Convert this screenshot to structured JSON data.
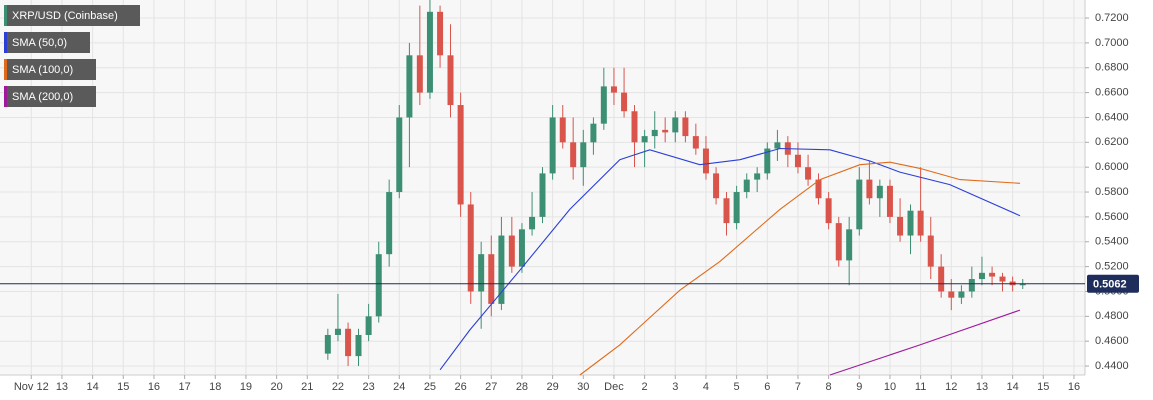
{
  "chart_data": {
    "type": "candlestick",
    "symbol": "XRP/USD (Coinbase)",
    "up_color": "#3d8f74",
    "down_color": "#d9554c",
    "grid": true,
    "xlim": [
      10.98,
      46.36
    ],
    "ylim": [
      0.4328,
      0.7345
    ],
    "xticks": [
      {
        "value": 12,
        "label": "Nov 12"
      },
      13,
      14,
      15,
      16,
      17,
      18,
      19,
      20,
      21,
      22,
      23,
      24,
      25,
      26,
      27,
      28,
      29,
      30,
      {
        "value": 31,
        "label": "Dec"
      },
      {
        "value": 32,
        "label": "2"
      },
      {
        "value": 33,
        "label": "3"
      },
      {
        "value": 34,
        "label": "4"
      },
      {
        "value": 35,
        "label": "5"
      },
      {
        "value": 36,
        "label": "6"
      },
      {
        "value": 37,
        "label": "7"
      },
      {
        "value": 38,
        "label": "8"
      },
      {
        "value": 39,
        "label": "9"
      },
      {
        "value": 40,
        "label": "10"
      },
      {
        "value": 41,
        "label": "11"
      },
      {
        "value": 42,
        "label": "12"
      },
      {
        "value": 43,
        "label": "13"
      },
      {
        "value": 44,
        "label": "14"
      },
      {
        "value": 45,
        "label": "15"
      },
      {
        "value": 46,
        "label": "16"
      }
    ],
    "yticks": [
      {
        "value": 0.44,
        "label": "0.4400"
      },
      {
        "value": 0.46,
        "label": "0.4600"
      },
      {
        "value": 0.48,
        "label": "0.4800"
      },
      {
        "value": 0.5,
        "label": "0.5000"
      },
      {
        "value": 0.52,
        "label": "0.5200"
      },
      {
        "value": 0.54,
        "label": "0.5400"
      },
      {
        "value": 0.56,
        "label": "0.5600"
      },
      {
        "value": 0.58,
        "label": "0.5800"
      },
      {
        "value": 0.6,
        "label": "0.6000"
      },
      {
        "value": 0.62,
        "label": "0.6200"
      },
      {
        "value": 0.64,
        "label": "0.6400"
      },
      {
        "value": 0.66,
        "label": "0.6600"
      },
      {
        "value": 0.68,
        "label": "0.6800"
      },
      {
        "value": 0.7,
        "label": "0.7000"
      },
      {
        "value": 0.72,
        "label": "0.7200"
      }
    ],
    "x": [
      21.67,
      22.0,
      22.33,
      22.67,
      23.0,
      23.33,
      23.67,
      24.0,
      24.33,
      24.67,
      25.0,
      25.33,
      25.67,
      26.0,
      26.33,
      26.67,
      27.0,
      27.33,
      27.67,
      28.0,
      28.33,
      28.67,
      29.0,
      29.33,
      29.67,
      30.0,
      30.33,
      30.67,
      31.0,
      31.33,
      31.67,
      32.0,
      32.33,
      32.67,
      33.0,
      33.33,
      33.67,
      34.0,
      34.33,
      34.67,
      35.0,
      35.33,
      35.67,
      36.0,
      36.33,
      36.67,
      37.0,
      37.33,
      37.67,
      38.0,
      38.33,
      38.67,
      39.0,
      39.33,
      39.67,
      40.0,
      40.33,
      40.67,
      41.0,
      41.33,
      41.67,
      42.0,
      42.33,
      42.67,
      43.0,
      43.33,
      43.67,
      44.0,
      44.33
    ],
    "open": [
      0.45,
      0.465,
      0.47,
      0.448,
      0.465,
      0.48,
      0.53,
      0.58,
      0.64,
      0.69,
      0.66,
      0.725,
      0.69,
      0.65,
      0.57,
      0.5,
      0.53,
      0.49,
      0.545,
      0.52,
      0.55,
      0.56,
      0.595,
      0.64,
      0.62,
      0.6,
      0.62,
      0.635,
      0.665,
      0.66,
      0.645,
      0.62,
      0.625,
      0.63,
      0.628,
      0.64,
      0.625,
      0.615,
      0.595,
      0.575,
      0.555,
      0.58,
      0.59,
      0.595,
      0.615,
      0.62,
      0.61,
      0.6,
      0.59,
      0.575,
      0.555,
      0.525,
      0.55,
      0.59,
      0.575,
      0.585,
      0.56,
      0.545,
      0.565,
      0.545,
      0.52,
      0.5,
      0.495,
      0.5,
      0.51,
      0.515,
      0.512,
      0.508,
      0.505
    ],
    "high": [
      0.47,
      0.498,
      0.475,
      0.47,
      0.49,
      0.54,
      0.59,
      0.65,
      0.7,
      0.73,
      0.735,
      0.73,
      0.715,
      0.66,
      0.58,
      0.54,
      0.545,
      0.56,
      0.56,
      0.555,
      0.58,
      0.6,
      0.65,
      0.65,
      0.64,
      0.63,
      0.64,
      0.68,
      0.68,
      0.68,
      0.65,
      0.63,
      0.645,
      0.64,
      0.645,
      0.645,
      0.635,
      0.625,
      0.6,
      0.58,
      0.585,
      0.595,
      0.6,
      0.62,
      0.63,
      0.625,
      0.62,
      0.61,
      0.595,
      0.58,
      0.56,
      0.56,
      0.6,
      0.605,
      0.59,
      0.59,
      0.575,
      0.57,
      0.6,
      0.56,
      0.53,
      0.51,
      0.505,
      0.52,
      0.528,
      0.52,
      0.515,
      0.512,
      0.51
    ],
    "low": [
      0.445,
      0.46,
      0.44,
      0.44,
      0.46,
      0.475,
      0.52,
      0.575,
      0.6,
      0.65,
      0.655,
      0.68,
      0.64,
      0.56,
      0.49,
      0.47,
      0.48,
      0.485,
      0.515,
      0.515,
      0.545,
      0.555,
      0.59,
      0.615,
      0.59,
      0.585,
      0.61,
      0.63,
      0.65,
      0.64,
      0.6,
      0.6,
      0.615,
      0.62,
      0.62,
      0.62,
      0.61,
      0.59,
      0.57,
      0.545,
      0.55,
      0.575,
      0.58,
      0.59,
      0.605,
      0.6,
      0.595,
      0.585,
      0.57,
      0.55,
      0.52,
      0.505,
      0.545,
      0.57,
      0.56,
      0.555,
      0.54,
      0.53,
      0.54,
      0.51,
      0.495,
      0.485,
      0.49,
      0.495,
      0.505,
      0.505,
      0.5,
      0.5,
      0.502
    ],
    "close": [
      0.465,
      0.47,
      0.448,
      0.465,
      0.48,
      0.53,
      0.58,
      0.64,
      0.69,
      0.66,
      0.725,
      0.69,
      0.65,
      0.57,
      0.5,
      0.53,
      0.49,
      0.545,
      0.52,
      0.55,
      0.56,
      0.595,
      0.64,
      0.62,
      0.6,
      0.62,
      0.635,
      0.665,
      0.66,
      0.645,
      0.62,
      0.625,
      0.63,
      0.628,
      0.64,
      0.625,
      0.615,
      0.595,
      0.575,
      0.555,
      0.58,
      0.59,
      0.595,
      0.615,
      0.62,
      0.61,
      0.6,
      0.59,
      0.575,
      0.555,
      0.525,
      0.55,
      0.59,
      0.575,
      0.585,
      0.56,
      0.545,
      0.565,
      0.545,
      0.52,
      0.5,
      0.495,
      0.5,
      0.51,
      0.515,
      0.512,
      0.508,
      0.505,
      0.5062
    ],
    "price_line_color": "#1f2d5c",
    "overlays": [
      {
        "name": "SMA (50,0)",
        "color": "#2b3fd6",
        "x": [
          25.33,
          26.3,
          27.93,
          29.56,
          31.19,
          32.17,
          33.8,
          35.11,
          36.41,
          38.04,
          39.35,
          40.32,
          41.95,
          44.24
        ],
        "values": [
          0.437,
          0.469,
          0.517,
          0.566,
          0.606,
          0.614,
          0.602,
          0.606,
          0.615,
          0.614,
          0.605,
          0.596,
          0.586,
          0.561
        ]
      },
      {
        "name": "SMA (100,0)",
        "color": "#e06a1b",
        "x": [
          29.89,
          31.19,
          33.15,
          34.45,
          36.41,
          37.72,
          39.02,
          40.0,
          40.98,
          42.28,
          44.24
        ],
        "values": [
          0.4328,
          0.457,
          0.501,
          0.524,
          0.566,
          0.59,
          0.602,
          0.604,
          0.599,
          0.59,
          0.587
        ]
      },
      {
        "name": "SMA (200,0)",
        "color": "#a0189c",
        "x": [
          38.04,
          40.98,
          44.24
        ],
        "values": [
          0.4328,
          0.457,
          0.485
        ]
      }
    ]
  }
}
